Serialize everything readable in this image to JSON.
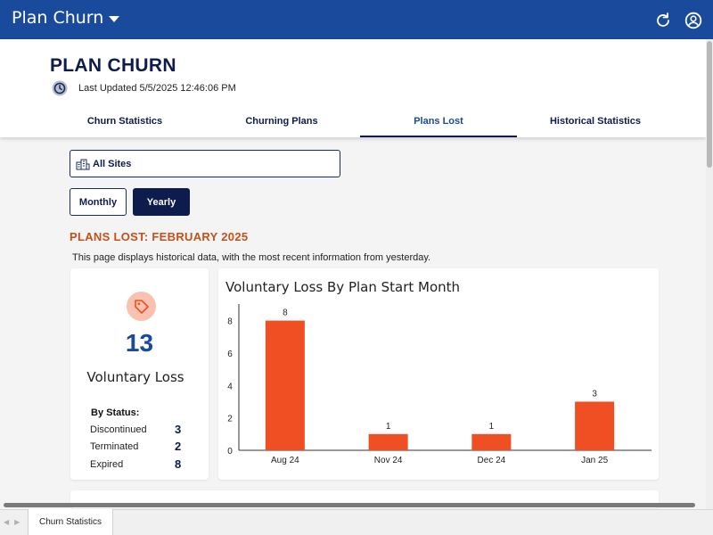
{
  "appbar": {
    "title": "Plan Churn",
    "icons": [
      "chevron-down-icon",
      "refresh-icon",
      "account-icon"
    ],
    "color": "#1a4a9c"
  },
  "header": {
    "title": "PLAN CHURN",
    "last_updated": "Last Updated 5/5/2025 12:46:06 PM"
  },
  "tabs": [
    {
      "label": "Churn Statistics",
      "active": false
    },
    {
      "label": "Churning Plans",
      "active": false
    },
    {
      "label": "Plans Lost",
      "active": true
    },
    {
      "label": "Historical Statistics",
      "active": false
    }
  ],
  "filters": {
    "site": "All Sites",
    "period_monthly": "Monthly",
    "period_yearly": "Yearly",
    "selected_period": "Yearly"
  },
  "section": {
    "title": "PLANS LOST: FEBRUARY 2025",
    "description": "This page displays historical data, with the most recent information from yesterday."
  },
  "summary": {
    "icon": "tag-icon",
    "total": "13",
    "label": "Voluntary Loss",
    "by_status_label": "By Status:",
    "statuses": [
      {
        "label": "Discontinued",
        "value": "3"
      },
      {
        "label": "Terminated",
        "value": "2"
      },
      {
        "label": "Expired",
        "value": "8"
      }
    ]
  },
  "chart_data": {
    "type": "bar",
    "title": "Voluntary Loss By Plan Start Month",
    "categories": [
      "Aug 24",
      "Nov 24",
      "Dec 24",
      "Jan 25"
    ],
    "values": [
      8,
      1,
      1,
      3
    ],
    "ylim": [
      0,
      8.8
    ],
    "yticks": [
      0,
      2,
      4,
      6,
      8
    ],
    "data_labels": true,
    "bar_color": "#f04e23",
    "grid": false
  },
  "bottom": {
    "sheet_tab": "Churn Statistics"
  },
  "colors": {
    "accent": "#0e1b4d",
    "section_title": "#c4501a",
    "bar": "#f04e23"
  }
}
